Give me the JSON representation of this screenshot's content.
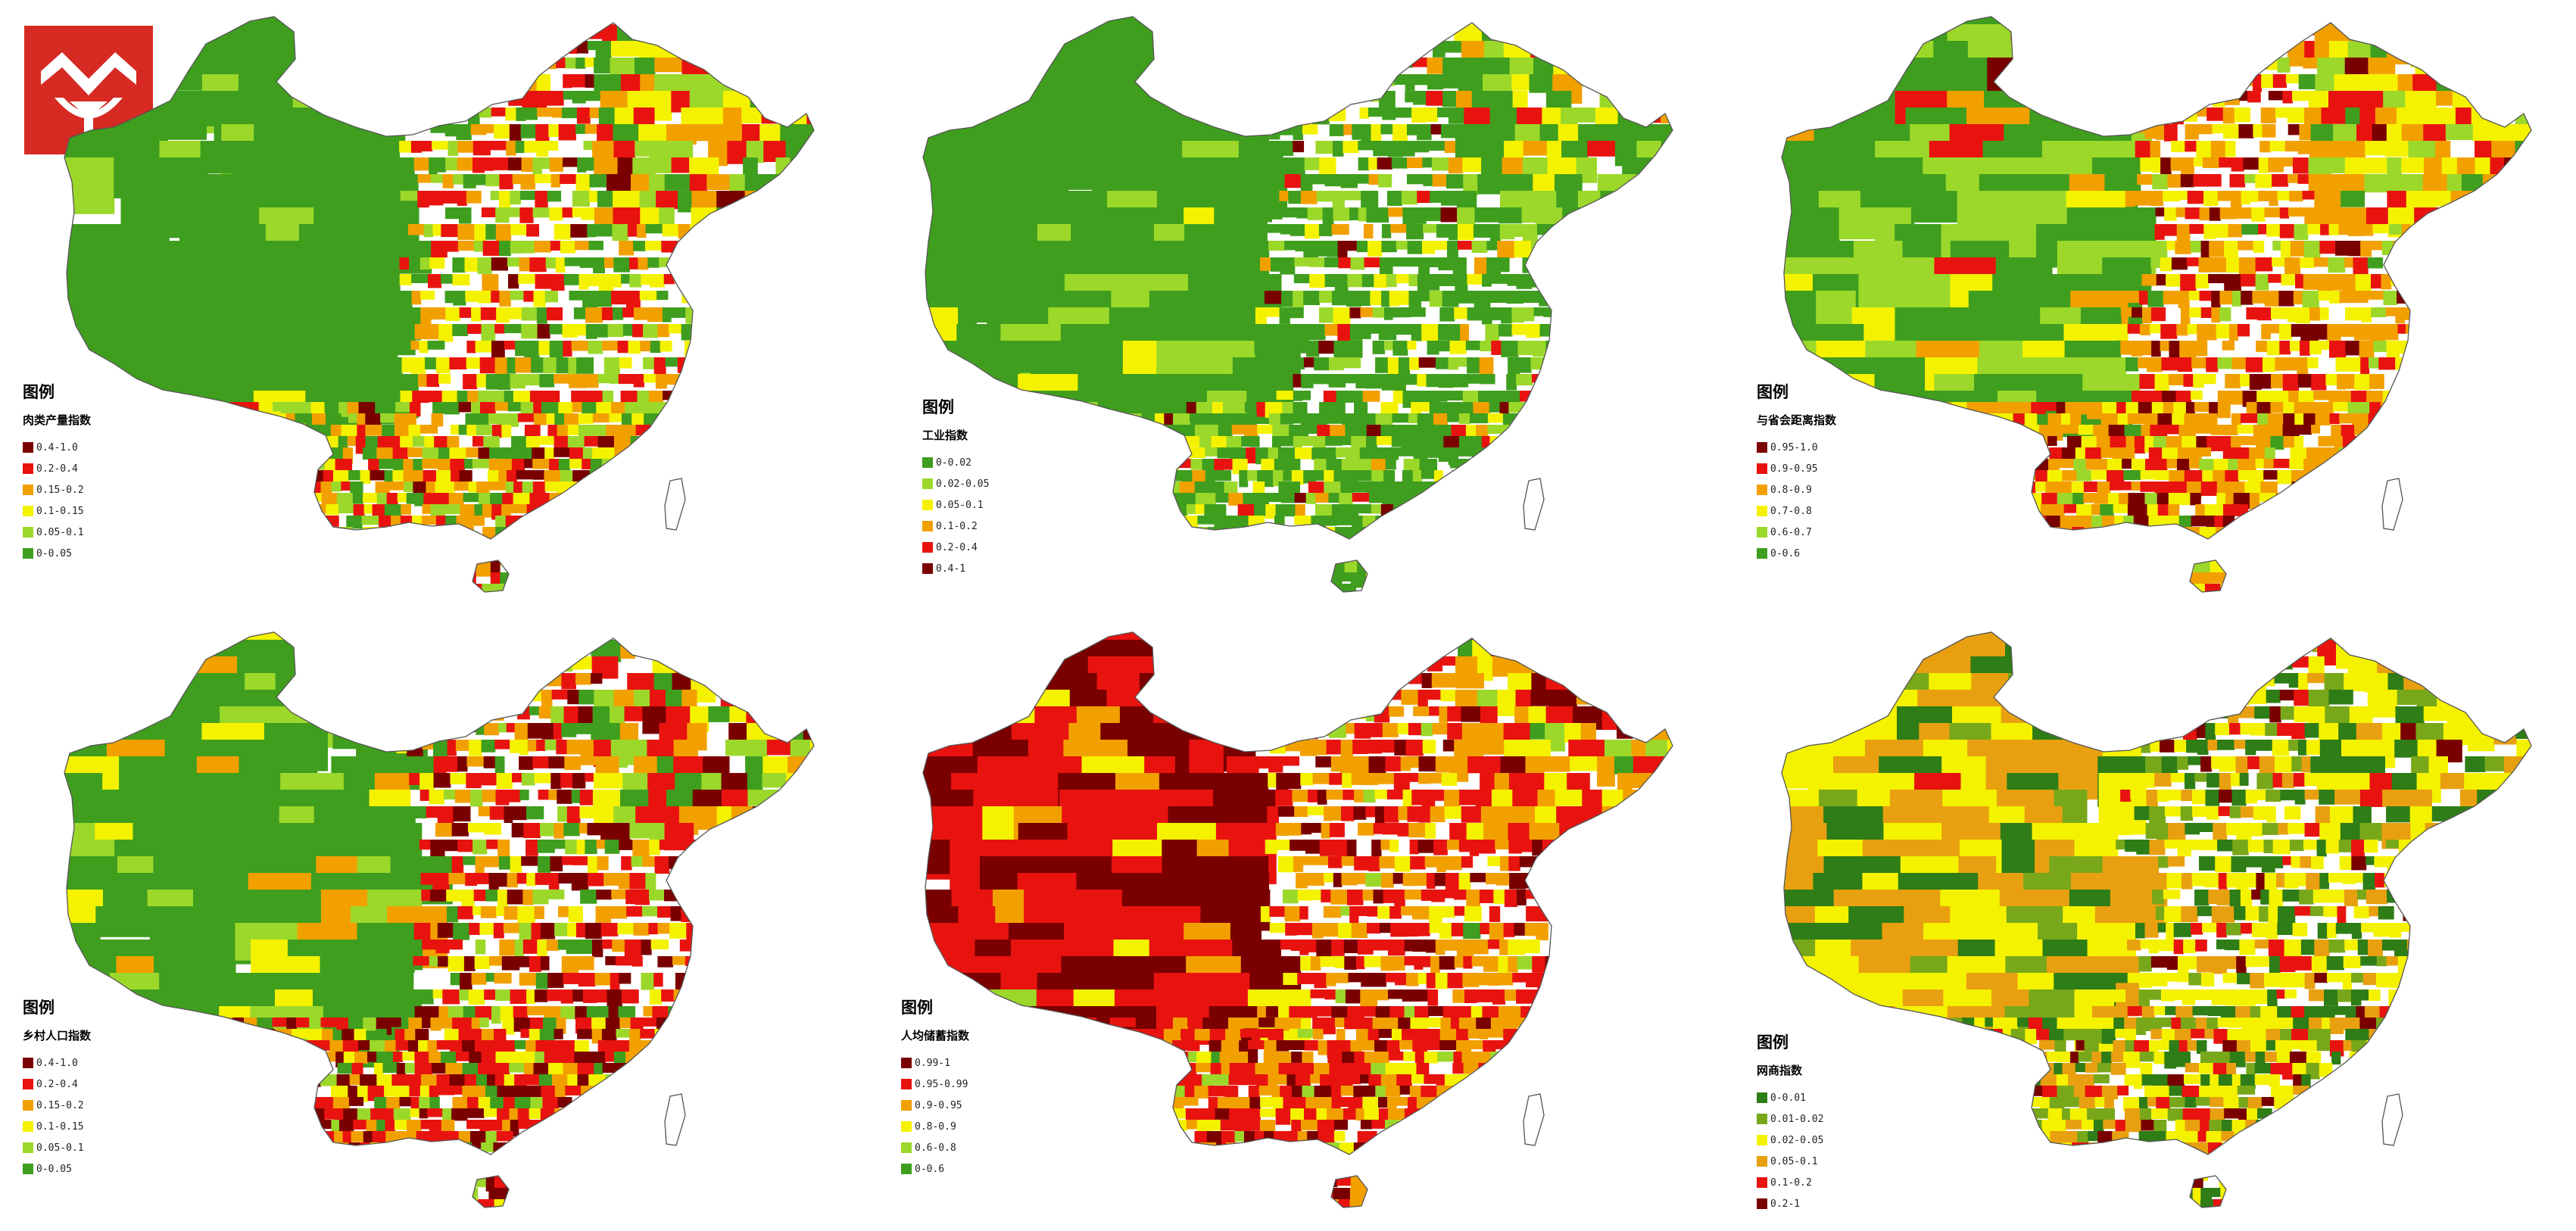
{
  "maps": [
    {
      "id": "meat",
      "legend_title": "图例",
      "index_name": "肉类产量指数",
      "classes": [
        {
          "label": "0.4-1.0",
          "color": "#7a0000"
        },
        {
          "label": "0.2-0.4",
          "color": "#e8130f"
        },
        {
          "label": "0.15-0.2",
          "color": "#f2a000"
        },
        {
          "label": "0.1-0.15",
          "color": "#f5f200"
        },
        {
          "label": "0.05-0.1",
          "color": "#9cd82a"
        },
        {
          "label": "0-0.05",
          "color": "#3f9e1e"
        }
      ]
    },
    {
      "id": "industry",
      "legend_title": "图例",
      "index_name": "工业指数",
      "classes": [
        {
          "label": "0-0.02",
          "color": "#3f9e1e"
        },
        {
          "label": "0.02-0.05",
          "color": "#9cd82a"
        },
        {
          "label": "0.05-0.1",
          "color": "#f5f200"
        },
        {
          "label": "0.1-0.2",
          "color": "#f2a000"
        },
        {
          "label": "0.2-0.4",
          "color": "#e8130f"
        },
        {
          "label": "0.4-1",
          "color": "#7a0000"
        }
      ]
    },
    {
      "id": "capital-distance",
      "legend_title": "图例",
      "index_name": "与省会距离指数",
      "classes": [
        {
          "label": "0.95-1.0",
          "color": "#7a0000"
        },
        {
          "label": "0.9-0.95",
          "color": "#e8130f"
        },
        {
          "label": "0.8-0.9",
          "color": "#f2a000"
        },
        {
          "label": "0.7-0.8",
          "color": "#f5f200"
        },
        {
          "label": "0.6-0.7",
          "color": "#9cd82a"
        },
        {
          "label": "0-0.6",
          "color": "#3f9e1e"
        }
      ]
    },
    {
      "id": "rural-population",
      "legend_title": "图例",
      "index_name": "乡村人口指数",
      "classes": [
        {
          "label": "0.4-1.0",
          "color": "#7a0000"
        },
        {
          "label": "0.2-0.4",
          "color": "#e8130f"
        },
        {
          "label": "0.15-0.2",
          "color": "#f2a000"
        },
        {
          "label": "0.1-0.15",
          "color": "#f5f200"
        },
        {
          "label": "0.05-0.1",
          "color": "#9cd82a"
        },
        {
          "label": "0-0.05",
          "color": "#3f9e1e"
        }
      ]
    },
    {
      "id": "savings",
      "legend_title": "图例",
      "index_name": "人均储蓄指数",
      "classes": [
        {
          "label": "0.99-1",
          "color": "#7a0000"
        },
        {
          "label": "0.95-0.99",
          "color": "#e8130f"
        },
        {
          "label": "0.9-0.95",
          "color": "#f2a000"
        },
        {
          "label": "0.8-0.9",
          "color": "#f5f200"
        },
        {
          "label": "0.6-0.8",
          "color": "#9cd82a"
        },
        {
          "label": "0-0.6",
          "color": "#3f9e1e"
        }
      ]
    },
    {
      "id": "online-merchants",
      "legend_title": "图例",
      "index_name": "网商指数",
      "classes": [
        {
          "label": "0-0.01",
          "color": "#2e7d16"
        },
        {
          "label": "0.01-0.02",
          "color": "#78a81a"
        },
        {
          "label": "0.02-0.05",
          "color": "#f5f200"
        },
        {
          "label": "0.05-0.1",
          "color": "#e8a010"
        },
        {
          "label": "0.1-0.2",
          "color": "#e8130f"
        },
        {
          "label": "0.2-1",
          "color": "#7a0000"
        }
      ]
    }
  ]
}
